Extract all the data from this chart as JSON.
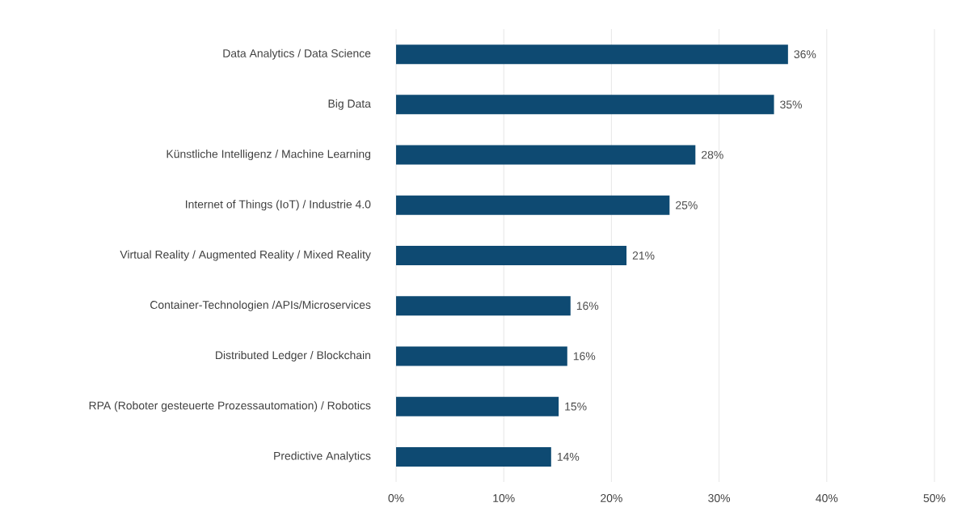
{
  "chart_data": {
    "type": "bar",
    "orientation": "horizontal",
    "categories": [
      "Data Analytics / Data Science",
      "Big Data",
      "Künstliche Intelligenz / Machine Learning",
      "Internet of Things (IoT) / Industrie 4.0",
      "Virtual Reality / Augmented Reality / Mixed Reality",
      "Container-Technologien /APIs/Microservices",
      "Distributed Ledger / Blockchain",
      "RPA (Roboter gesteuerte Prozessautomation) / Robotics",
      "Predictive Analytics"
    ],
    "values": [
      36.4,
      35.1,
      27.8,
      25.4,
      21.4,
      16.2,
      15.9,
      15.1,
      14.4
    ],
    "value_labels": [
      "36%",
      "35%",
      "28%",
      "25%",
      "21%",
      "16%",
      "16%",
      "15%",
      "14%"
    ],
    "color": "#0e4a72",
    "xlim": [
      0,
      50
    ],
    "xticks": [
      {
        "value": 0,
        "label": "0%"
      },
      {
        "value": 10,
        "label": "10%"
      },
      {
        "value": 20,
        "label": "20%"
      },
      {
        "value": 30,
        "label": "30%"
      },
      {
        "value": 40,
        "label": "40%"
      },
      {
        "value": 50,
        "label": "50%"
      }
    ],
    "grid": "x"
  }
}
